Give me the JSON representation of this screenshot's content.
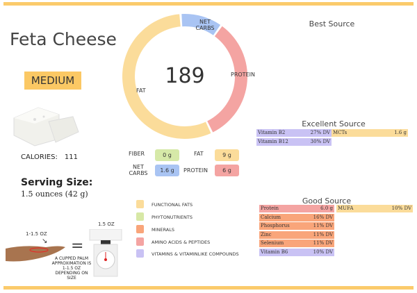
{
  "food": {
    "name": "Feta Cheese",
    "level": "MEDIUM",
    "calories_label": "CALORIES:",
    "calories": "111",
    "serving_label": "Serving Size:",
    "serving": "1.5 ounces (42 g)"
  },
  "donut": {
    "total": "189",
    "segments": [
      {
        "name": "NET CARBS",
        "pct": 11,
        "color": "#a9c4f3"
      },
      {
        "name": "PROTEIN",
        "pct": 33,
        "color": "#f4a4a2"
      },
      {
        "name": "FAT",
        "pct": 56,
        "color": "#fbdc9a"
      }
    ]
  },
  "macros": {
    "fiber_label": "FIBER",
    "fiber": "0 g",
    "fat_label": "FAT",
    "fat": "9 g",
    "carbs_label": "NET CARBS",
    "carbs": "1.6 g",
    "protein_label": "PROTEIN",
    "protein": "6 g"
  },
  "legend": [
    "FUNCTIONAL FATS",
    "PHYTONUTRIENTS",
    "MINERALS",
    "AMINO ACIDS & PEPTIDES",
    "VITAMINS & VITAMINLIKE COMPOUNDS"
  ],
  "colors": {
    "fats": "#fbdc9a",
    "phyto": "#d7e8a6",
    "minerals": "#f9a57a",
    "amino": "#f4a4a2",
    "vitamins": "#c9c2f4",
    "fiber": "#d6e9a8",
    "carbs": "#a9c4f3"
  },
  "best": {
    "title": "Best Source"
  },
  "excellent": {
    "title": "Excellent Source",
    "left": [
      {
        "name": "Vitamin B2",
        "value": "27% DV"
      },
      {
        "name": "Vitamin B12",
        "value": "30% DV"
      }
    ],
    "right": [
      {
        "name": "MCTs",
        "value": "1.6 g"
      }
    ]
  },
  "good": {
    "title": "Good Source",
    "left": [
      {
        "name": "Protein",
        "value": "6.0 g"
      },
      {
        "name": "Calcium",
        "value": "16% DV"
      },
      {
        "name": "Phosphorus",
        "value": "11% DV"
      },
      {
        "name": "Zinc",
        "value": "11% DV"
      },
      {
        "name": "Selenium",
        "value": "11% DV"
      },
      {
        "name": "Vitamin B6",
        "value": "10% DV"
      }
    ],
    "right": [
      {
        "name": "MUFA",
        "value": "10% DV"
      }
    ]
  },
  "portion": {
    "hand_label": "1-1.5 OZ",
    "scale_label": "1.5 OZ",
    "equals": "=",
    "note": "A CUPPED PALM APPROXIMATION IS 1-1.5 OZ DEPENDING ON SIZE"
  }
}
